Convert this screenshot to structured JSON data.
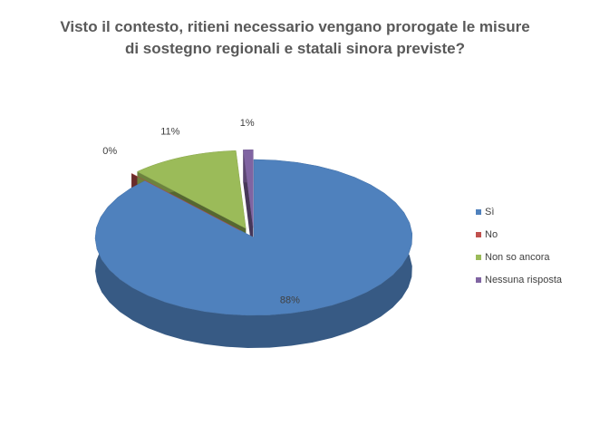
{
  "chart_data": {
    "type": "pie3d",
    "title": "Visto il contesto, ritieni necessario vengano prorogate le misure di sostegno regionali e statali sinora previste?",
    "categories": [
      "Sì",
      "No",
      "Non so ancora",
      "Nessuna risposta"
    ],
    "values": [
      88,
      0,
      11,
      1
    ],
    "value_labels": [
      "88%",
      "0%",
      "11%",
      "1%"
    ],
    "colors": [
      "#4f81bd",
      "#c0504d",
      "#9bbb59",
      "#8064a2"
    ],
    "legend": "right"
  }
}
